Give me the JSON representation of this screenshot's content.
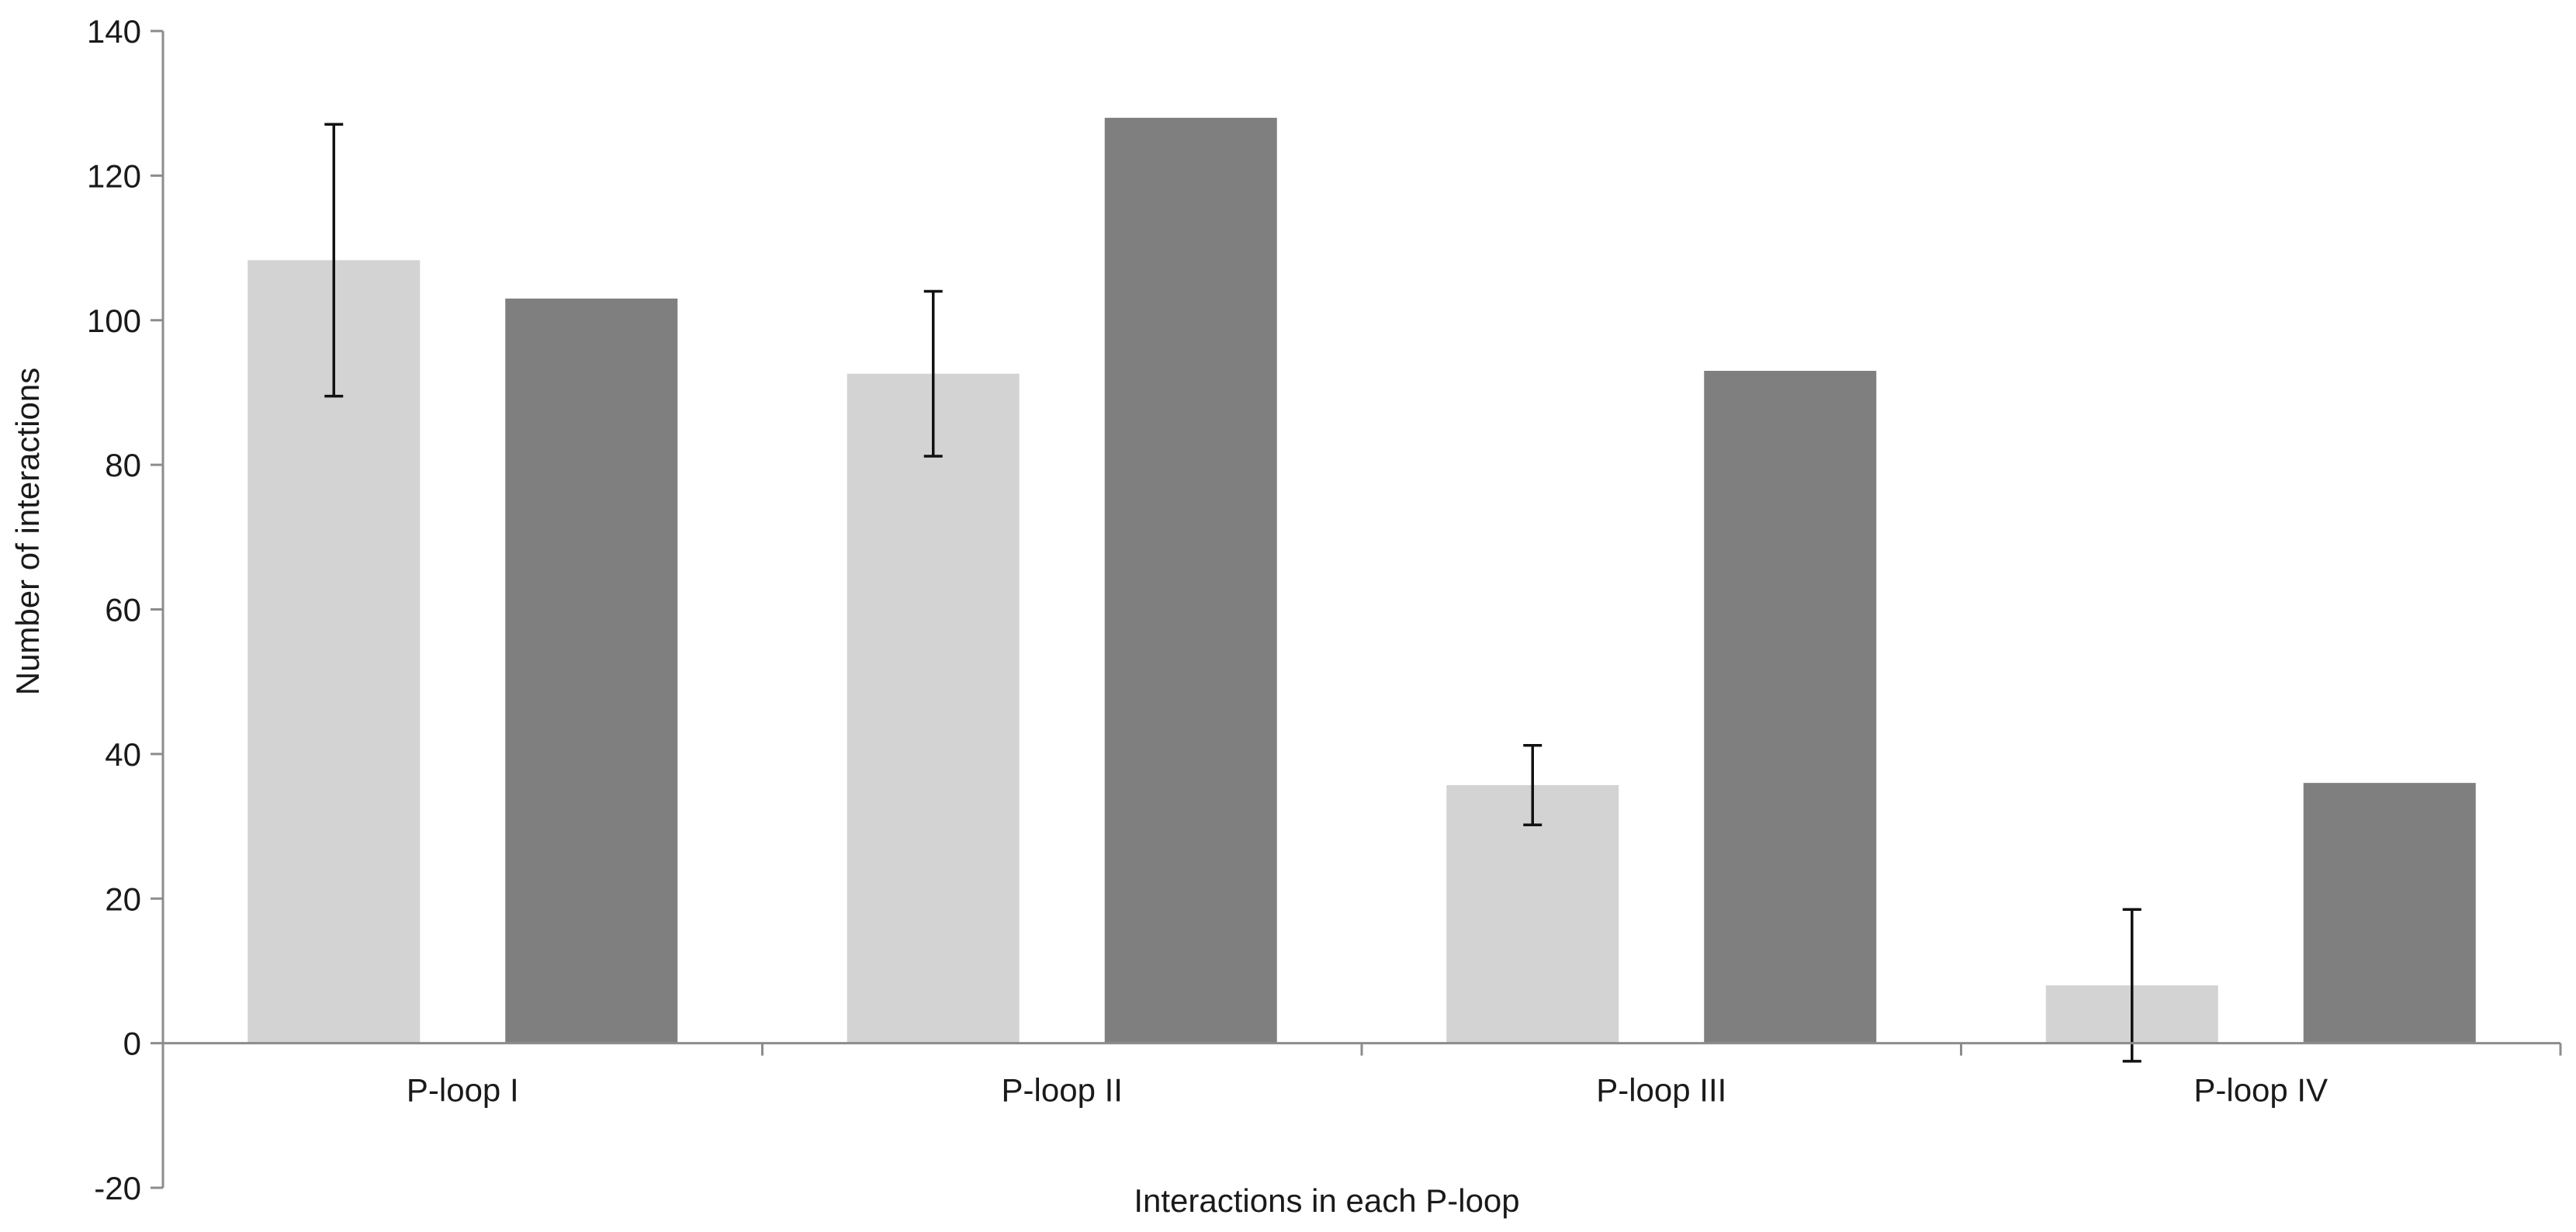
{
  "chart_data": {
    "type": "bar",
    "title": "",
    "xlabel": "Interactions in each P-loop",
    "ylabel": "Number of interactions",
    "categories": [
      "P-loop I",
      "P-loop II",
      "P-loop III",
      "P-loop IV"
    ],
    "ylim": [
      -20,
      140
    ],
    "yticks": [
      -20,
      0,
      20,
      40,
      60,
      80,
      100,
      120,
      140
    ],
    "grid": false,
    "legend": "none",
    "series": [
      {
        "color": "#d3d3d3",
        "values": [
          108.3,
          92.6,
          35.7,
          8.0
        ],
        "error": [
          18.8,
          11.4,
          5.5,
          10.5
        ]
      },
      {
        "color": "#7f7f7f",
        "values": [
          103,
          128,
          93,
          36
        ]
      }
    ]
  }
}
